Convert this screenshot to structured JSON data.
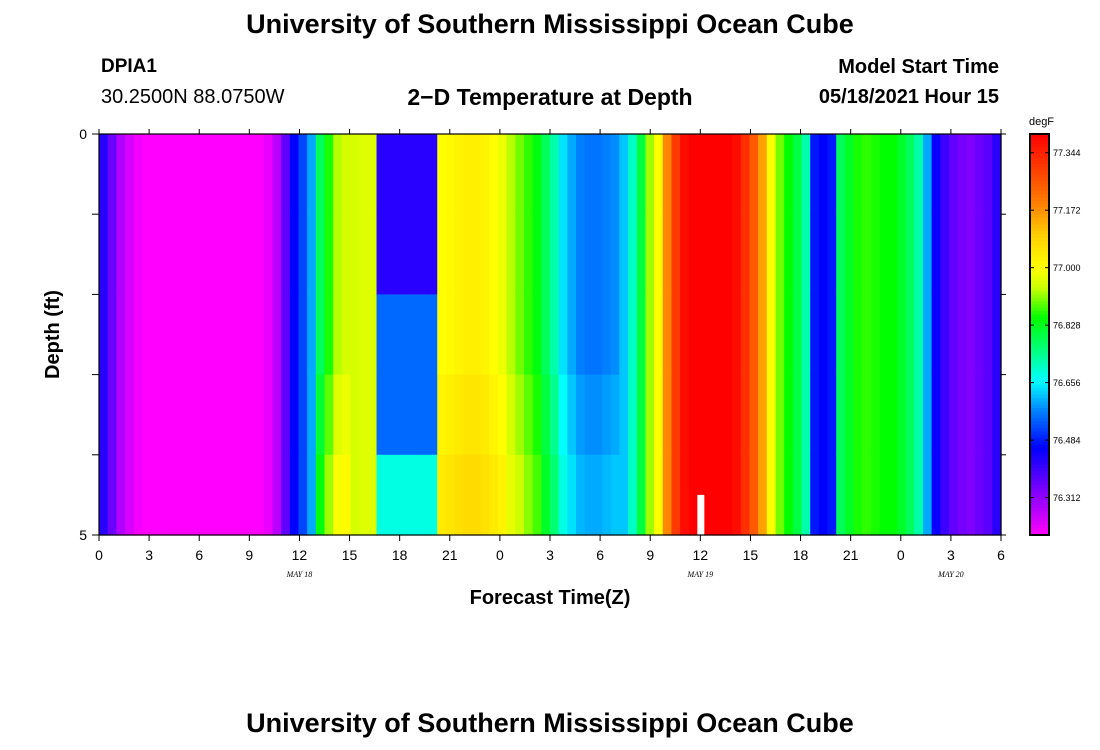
{
  "header": {
    "title": "University of Southern Mississippi Ocean Cube",
    "station_id": "DPIA1",
    "coordinates": "30.2500N  88.0750W",
    "subtitle": "2−D Temperature at Depth",
    "model_start_label": "Model Start Time",
    "model_start_value": "05/18/2021 Hour 15"
  },
  "footer": {
    "title": "University of Southern Mississippi Ocean Cube"
  },
  "chart_data": {
    "type": "heatmap",
    "xlabel": "Forecast Time(Z)",
    "ylabel": "Depth (ft)",
    "x_ticks": [
      "0",
      "3",
      "6",
      "9",
      "12",
      "15",
      "18",
      "21",
      "0",
      "3",
      "6",
      "9",
      "12",
      "15",
      "18",
      "21",
      "0",
      "3",
      "6"
    ],
    "date_labels": [
      {
        "label": "MAY 18",
        "tick_index": 4
      },
      {
        "label": "MAY 19",
        "tick_index": 12
      },
      {
        "label": "MAY 20",
        "tick_index": 17
      }
    ],
    "y_ticks": [
      "0",
      "5"
    ],
    "y_range": [
      0,
      5
    ],
    "y_minor_ticks": 4,
    "depth_layers": 5,
    "x_start_hour": 0,
    "x_end_hour": 54,
    "colorbar": {
      "unit": "degF",
      "min": 76.2,
      "max": 77.4,
      "tick_values": [
        "77.344",
        "77.172",
        "77.000",
        "76.828",
        "76.656",
        "76.484",
        "76.312"
      ],
      "stops": [
        {
          "v": 76.2,
          "c": "#ff00ff"
        },
        {
          "v": 76.33,
          "c": "#8000ff"
        },
        {
          "v": 76.46,
          "c": "#0000ff"
        },
        {
          "v": 76.57,
          "c": "#0080ff"
        },
        {
          "v": 76.66,
          "c": "#00ffff"
        },
        {
          "v": 76.75,
          "c": "#00ff80"
        },
        {
          "v": 76.85,
          "c": "#00ff00"
        },
        {
          "v": 76.94,
          "c": "#ccff00"
        },
        {
          "v": 77.0,
          "c": "#ffff00"
        },
        {
          "v": 77.1,
          "c": "#ffcc00"
        },
        {
          "v": 77.19,
          "c": "#ff8000"
        },
        {
          "v": 77.29,
          "c": "#ff4000"
        },
        {
          "v": 77.4,
          "c": "#ff0000"
        }
      ]
    },
    "surface_temps": [
      76.42,
      76.35,
      76.28,
      76.24,
      76.21,
      76.2,
      76.2,
      76.2,
      76.2,
      76.2,
      76.2,
      76.2,
      76.2,
      76.2,
      76.2,
      76.2,
      76.2,
      76.2,
      76.2,
      76.22,
      76.27,
      76.36,
      76.46,
      76.52,
      76.6,
      76.78,
      76.86,
      76.93,
      76.95,
      76.95,
      76.96,
      76.96,
      76.97,
      76.97,
      76.98,
      76.98,
      76.99,
      76.99,
      77.0,
      77.0,
      77.01,
      77.02,
      77.03,
      77.03,
      77.02,
      77.0,
      76.98,
      76.93,
      76.9,
      76.87,
      76.84,
      76.78,
      76.72,
      76.64,
      76.6,
      76.57,
      76.56,
      76.56,
      76.57,
      76.58,
      76.62,
      76.7,
      76.8,
      76.92,
      77.0,
      77.18,
      77.3,
      77.38,
      77.4,
      77.4,
      77.4,
      77.4,
      77.4,
      77.38,
      77.32,
      77.25,
      77.15,
      77.0,
      76.9,
      76.85,
      76.8,
      76.72,
      76.48,
      76.46,
      76.48,
      76.78,
      76.82,
      76.86,
      76.87,
      76.86,
      76.85,
      76.85,
      76.82,
      76.78,
      76.72,
      76.6,
      76.45,
      76.4,
      76.36,
      76.34,
      76.33,
      76.35,
      76.37,
      76.42
    ],
    "depth_anomalies": [
      {
        "from_hour": 16.8,
        "to_hour": 20.5,
        "values": [
          76.42,
          76.42,
          76.55,
          76.55,
          76.68
        ]
      },
      {
        "from_hour": 20.5,
        "to_hour": 31.0,
        "values": [
          0,
          0,
          0,
          0.02,
          0.04
        ]
      },
      {
        "from_hour": 13.0,
        "to_hour": 15.2,
        "values": [
          0,
          0,
          0,
          0.03,
          0.06
        ]
      }
    ],
    "marker": {
      "hour": 36,
      "depth_from": 4.5,
      "depth_to": 5,
      "color": "#ffffff"
    }
  }
}
